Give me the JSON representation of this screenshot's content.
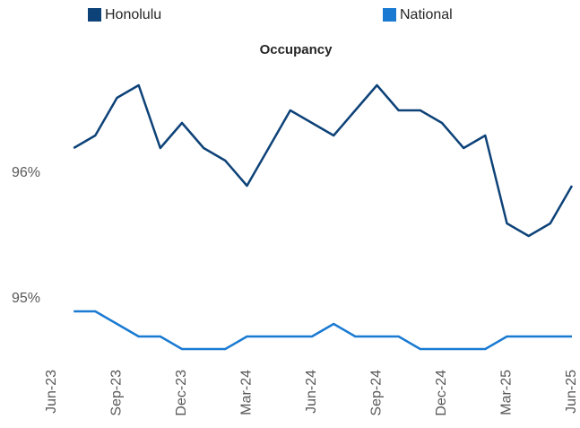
{
  "chart_data": {
    "type": "line",
    "title": "Occupancy",
    "categories": [
      "Jun-23",
      null,
      null,
      "Sep-23",
      null,
      null,
      "Dec-23",
      null,
      null,
      "Mar-24",
      null,
      null,
      "Jun-24",
      null,
      null,
      "Sep-24",
      null,
      null,
      "Dec-24",
      null,
      null,
      "Mar-25",
      null,
      null,
      "Jun-25"
    ],
    "series": [
      {
        "name": "Honolulu",
        "color": "#0d4278",
        "values": [
          null,
          96.2,
          96.3,
          96.6,
          96.7,
          96.2,
          96.4,
          96.2,
          96.1,
          95.9,
          96.2,
          96.5,
          96.4,
          96.3,
          96.5,
          96.7,
          96.5,
          96.5,
          96.4,
          96.2,
          96.3,
          95.6,
          95.5,
          95.6,
          95.9
        ]
      },
      {
        "name": "National",
        "color": "#1a7ad2",
        "values": [
          null,
          94.9,
          94.9,
          94.8,
          94.7,
          94.7,
          94.6,
          94.6,
          94.6,
          94.7,
          94.7,
          94.7,
          94.7,
          94.8,
          94.7,
          94.7,
          94.7,
          94.6,
          94.6,
          94.6,
          94.6,
          94.7,
          94.7,
          94.7,
          94.7
        ]
      }
    ],
    "ylim": [
      94.5,
      97
    ],
    "yticks": [
      {
        "value": 95,
        "label": "95%"
      },
      {
        "value": 96,
        "label": "96%"
      }
    ],
    "grid": false,
    "legend": "top"
  }
}
